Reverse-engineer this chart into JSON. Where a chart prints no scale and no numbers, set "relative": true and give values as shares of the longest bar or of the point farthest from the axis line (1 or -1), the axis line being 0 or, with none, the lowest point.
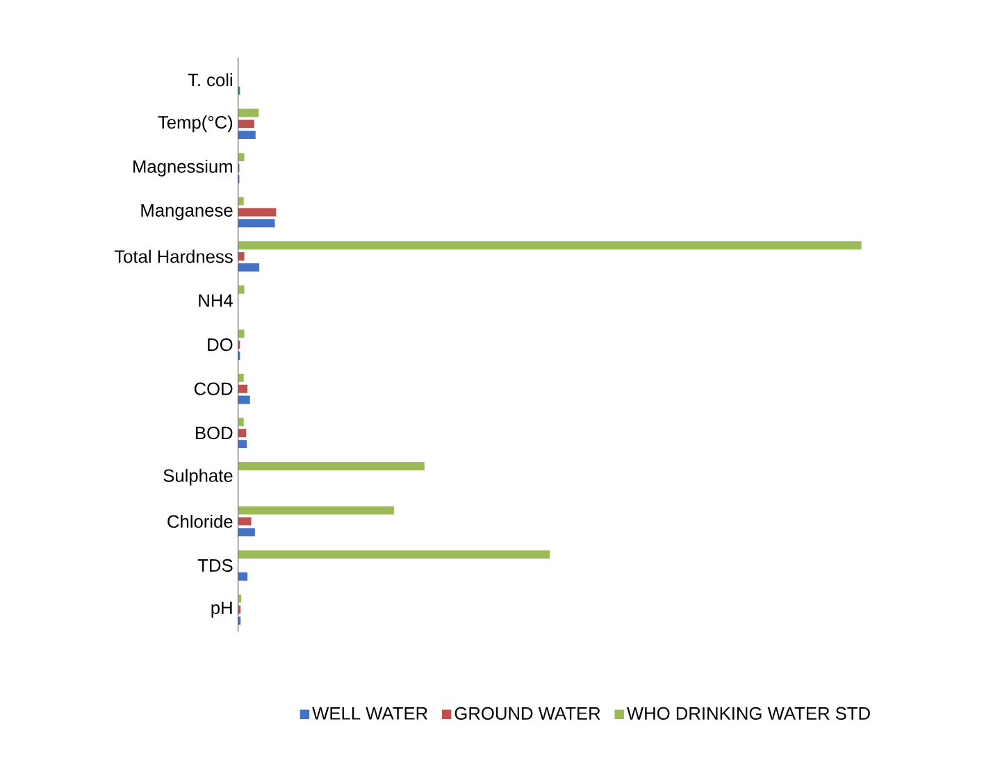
{
  "chart_data": {
    "type": "bar",
    "orientation": "horizontal",
    "relative": true,
    "legend": "bottom",
    "categories": [
      "T. coli",
      "Temp(°C)",
      "Magnessium",
      "Manganese",
      "Total Hardness",
      "NH4",
      "DO",
      "COD",
      "BOD",
      "Sulphate",
      "Chloride",
      "TDS",
      "pH"
    ],
    "series": [
      {
        "name": "WELL WATER",
        "color": "#4472c4",
        "values": [
          0.003,
          0.028,
          0.002,
          0.059,
          0.034,
          0,
          0.003,
          0.019,
          0.014,
          0,
          0.027,
          0.015,
          0.004
        ]
      },
      {
        "name": "GROUND WATER",
        "color": "#c0504d",
        "values": [
          0,
          0.026,
          0.002,
          0.061,
          0.01,
          0,
          0.003,
          0.015,
          0.013,
          0,
          0.021,
          0,
          0.004
        ]
      },
      {
        "name": "WHO DRINKING WATER STD",
        "color": "#9bbb59",
        "values": [
          0,
          0.033,
          0.01,
          0.009,
          1,
          0.01,
          0.01,
          0.009,
          0.009,
          0.299,
          0.25,
          0.5,
          0.005
        ]
      }
    ]
  }
}
